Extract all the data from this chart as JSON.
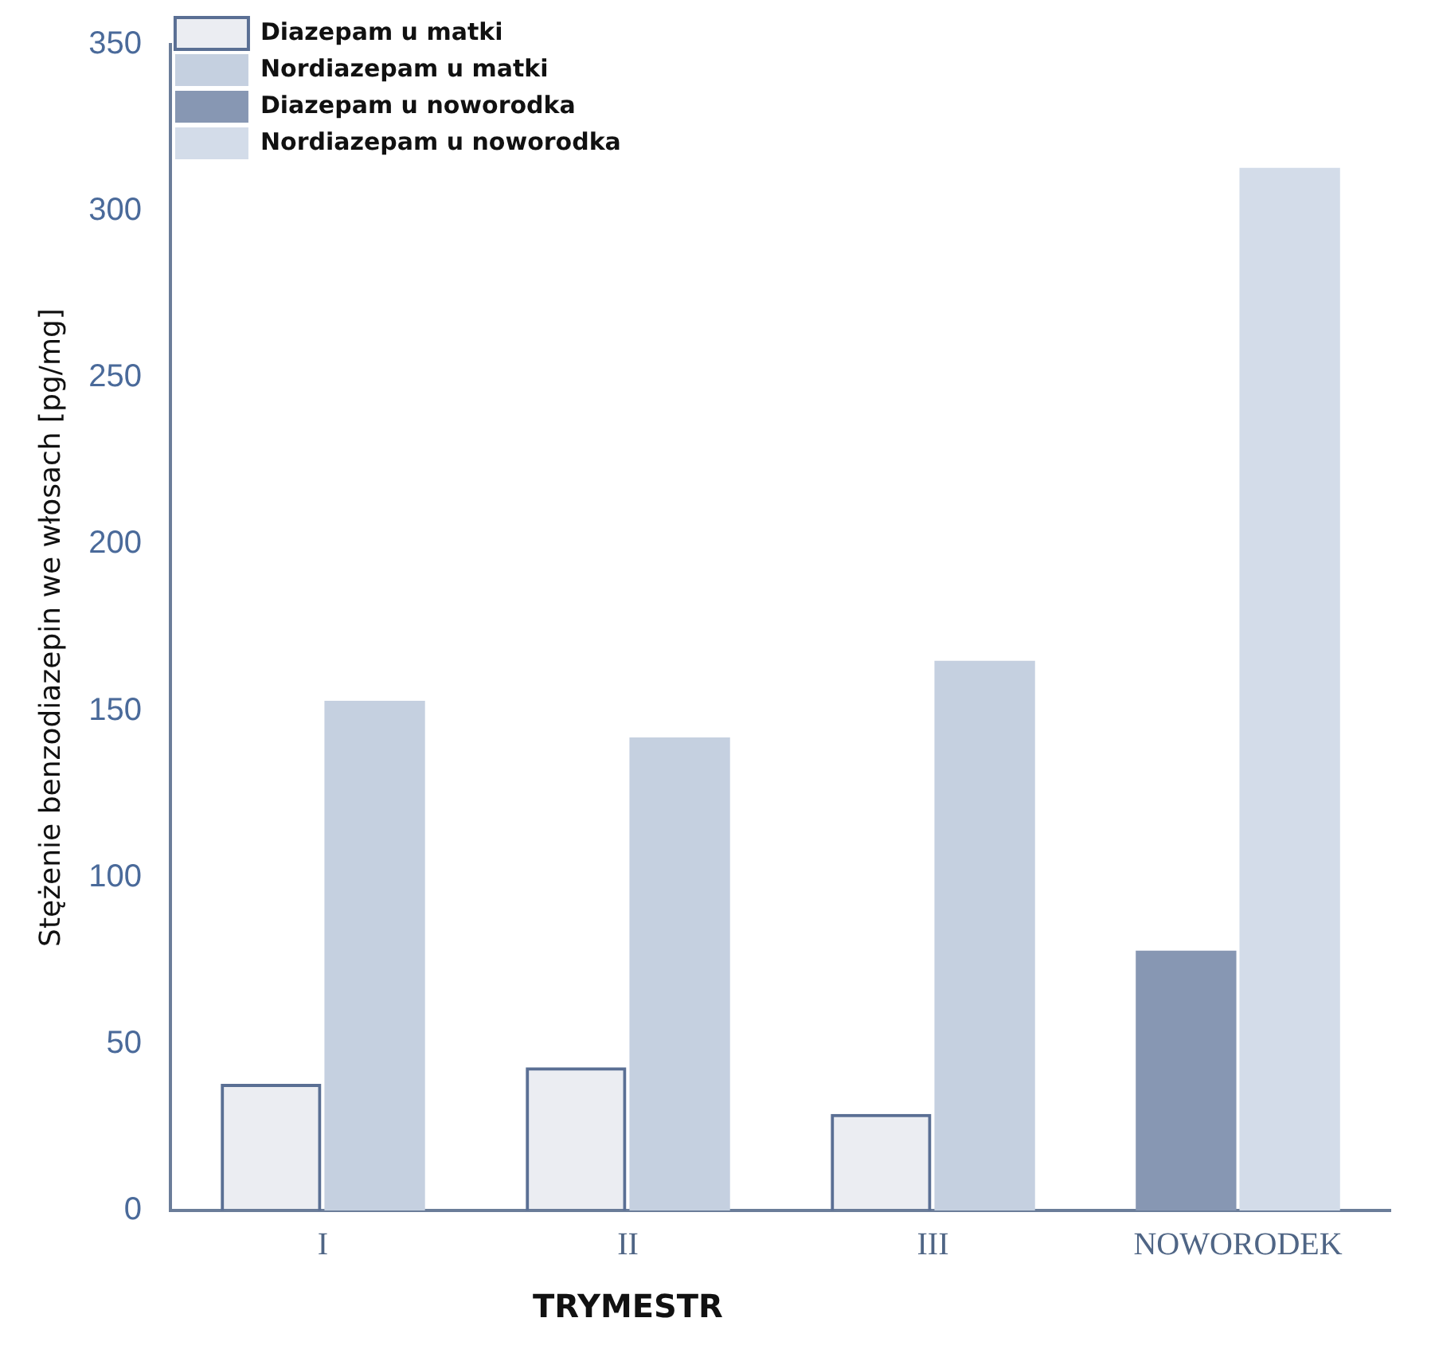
{
  "chart_data": {
    "type": "bar",
    "ylabel": "Stężenie benzodiazepin we włosach [pg/mg]",
    "xlabel": "TRYMESTR",
    "categories": [
      "I",
      "II",
      "III",
      "NOWORODEK"
    ],
    "series": [
      {
        "name": "Diazepam u matki",
        "color": "#5a6f94",
        "values": [
          38,
          43,
          29,
          null
        ]
      },
      {
        "name": "Nordiazepam u matki",
        "color": "#c5d0e0",
        "values": [
          153,
          142,
          165,
          null
        ]
      },
      {
        "name": "Diazepam u noworodka",
        "color": "#8797b3",
        "values": [
          null,
          null,
          null,
          78
        ]
      },
      {
        "name": "Nordiazepam u noworodka",
        "color": "#d3dce9",
        "values": [
          null,
          null,
          null,
          313
        ]
      }
    ],
    "ylim": [
      0,
      350
    ],
    "yticks": [
      0,
      50,
      100,
      150,
      200,
      250,
      300,
      350
    ],
    "grid": false,
    "legend": "top left"
  }
}
